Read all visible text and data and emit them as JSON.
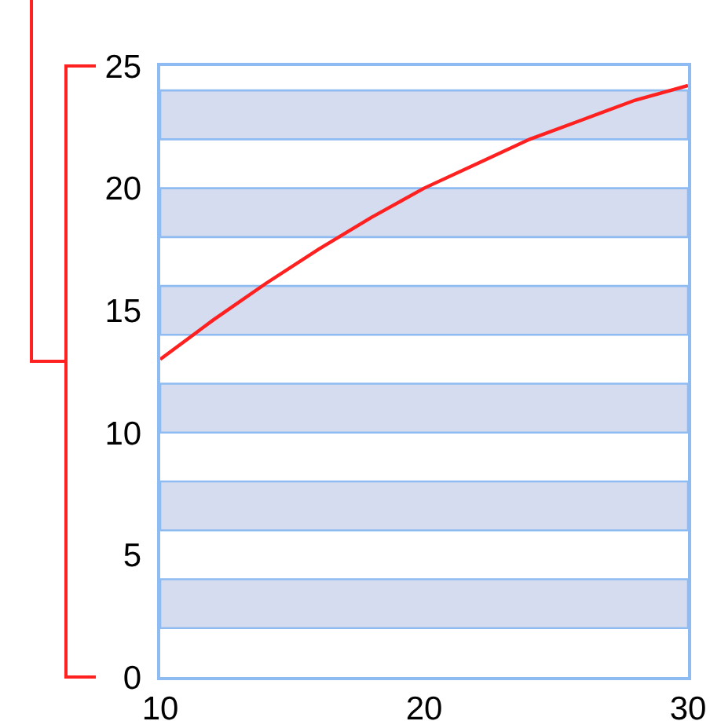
{
  "chart_data": {
    "type": "line",
    "x": [
      10,
      12,
      14,
      16,
      18,
      20,
      22,
      24,
      26,
      28,
      30
    ],
    "values": [
      13.0,
      14.6,
      16.1,
      17.5,
      18.8,
      20.0,
      21.0,
      22.0,
      22.8,
      23.6,
      24.2
    ],
    "color": "#ff2020",
    "line_style": "solid",
    "xlim": [
      10,
      30
    ],
    "xticks": [
      10,
      20,
      30
    ],
    "ylim": [
      0,
      25
    ],
    "yticks": [
      0,
      5,
      10,
      15,
      20,
      25
    ],
    "bands": [
      {
        "axis": "y",
        "from": 2,
        "to": 4,
        "color": "#d6dcef"
      },
      {
        "axis": "y",
        "from": 6,
        "to": 8,
        "color": "#d6dcef"
      },
      {
        "axis": "y",
        "from": 10,
        "to": 12,
        "color": "#d6dcef"
      },
      {
        "axis": "y",
        "from": 14,
        "to": 16,
        "color": "#d6dcef"
      },
      {
        "axis": "y",
        "from": 18,
        "to": 20,
        "color": "#d6dcef"
      },
      {
        "axis": "y",
        "from": 22,
        "to": 24,
        "color": "#d6dcef"
      }
    ]
  }
}
